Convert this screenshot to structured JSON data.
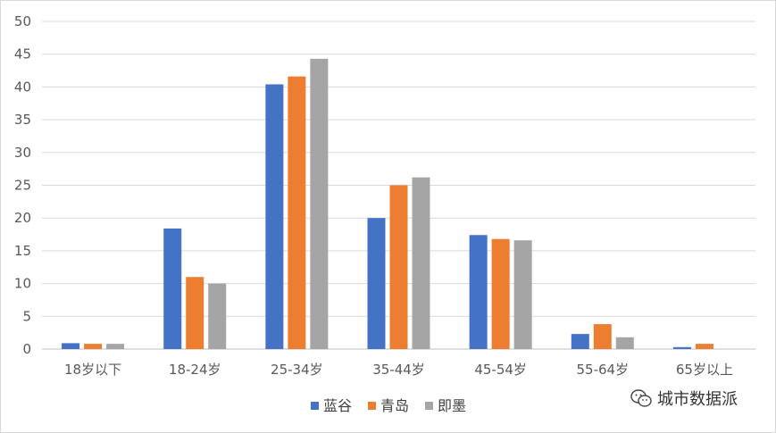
{
  "chart_data": {
    "type": "bar",
    "categories": [
      "18岁以下",
      "18-24岁",
      "25-34岁",
      "35-44岁",
      "45-54岁",
      "55-64岁",
      "65岁以上"
    ],
    "series": [
      {
        "name": "蓝谷",
        "color": "#4472c4",
        "values": [
          0.9,
          18.4,
          40.4,
          20.0,
          17.4,
          2.3,
          0.3
        ]
      },
      {
        "name": "青岛",
        "color": "#ed7d31",
        "values": [
          0.8,
          11.0,
          41.6,
          25.0,
          16.8,
          3.8,
          0.8
        ]
      },
      {
        "name": "即墨",
        "color": "#a5a5a5",
        "values": [
          0.8,
          10.0,
          44.3,
          26.2,
          16.6,
          1.8,
          0.0
        ]
      }
    ],
    "ylim": [
      0,
      50
    ],
    "yticks": [
      0,
      5,
      10,
      15,
      20,
      25,
      30,
      35,
      40,
      45,
      50
    ],
    "grid": true,
    "legend_position": "bottom"
  },
  "watermark": {
    "text": "城市数据派",
    "icon": "wechat-icon"
  }
}
